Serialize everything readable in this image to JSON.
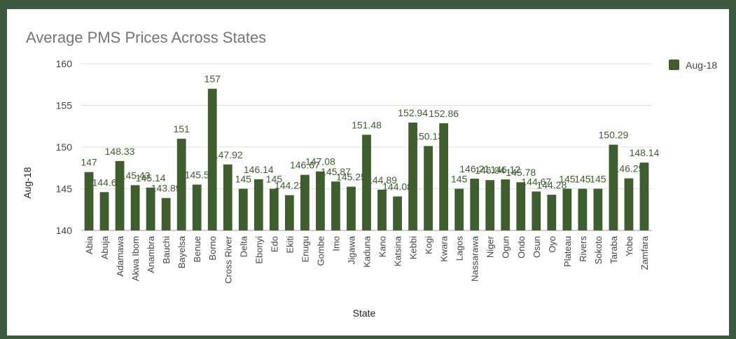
{
  "chart_data": {
    "type": "bar",
    "title": "Average PMS Prices Across States",
    "xlabel": "State",
    "ylabel": "Aug-18",
    "ylim": [
      140,
      160
    ],
    "yticks": [
      140,
      145,
      150,
      155,
      160
    ],
    "grid": true,
    "legend_position": "right",
    "categories": [
      "Abia",
      "Abuja",
      "Adamawa",
      "Akwa Ibom",
      "Anambra",
      "Bauchi",
      "Bayelsa",
      "Benue",
      "Borno",
      "Cross River",
      "Delta",
      "Ebonyi",
      "Edo",
      "Ekiti",
      "Enugu",
      "Gombe",
      "Imo",
      "Jigawa",
      "Kaduna",
      "Kano",
      "Katsina",
      "Kebbi",
      "Kogi",
      "Kwara",
      "Lagos",
      "Nassarawa",
      "Niger",
      "Ogun",
      "Ondo",
      "Osun",
      "Oyo",
      "Plateau",
      "Rivers",
      "Sokoto",
      "Taraba",
      "Yobe",
      "Zamfara"
    ],
    "series": [
      {
        "name": "Aug-18",
        "color": "#3e5e2f",
        "values": [
          147,
          144.6,
          148.33,
          145.43,
          145.14,
          143.89,
          151,
          145.5,
          157,
          147.92,
          145,
          146.14,
          145,
          144.23,
          146.67,
          147.08,
          145.87,
          145.25,
          151.48,
          144.89,
          144.08,
          152.94,
          150.13,
          152.86,
          145,
          146.21,
          146.04,
          146.12,
          145.78,
          144.67,
          144.28,
          145,
          145,
          145,
          150.29,
          146.25,
          148.14
        ],
        "labels": [
          "147",
          "144.6",
          "148.33",
          "145.43",
          "145.14",
          "143.89",
          "151",
          "145.5",
          "157",
          "147.92",
          "145",
          "146.14",
          "145",
          "144.23",
          "146.67",
          "147.08",
          "145.87",
          "145.25",
          "151.48",
          "144.89",
          "144.08",
          "152.94",
          "150.13",
          "152.86",
          "145",
          "146.21",
          "146.04",
          "146.12",
          "145.78",
          "144.67",
          "144.28",
          "145",
          "145",
          "145",
          "150.29",
          "146.25",
          "148.14"
        ]
      }
    ],
    "colors": {
      "title": "#757575",
      "axis_text": "#444444",
      "data_label": "#3e5e2f",
      "grid": "#e0e0e0"
    }
  }
}
